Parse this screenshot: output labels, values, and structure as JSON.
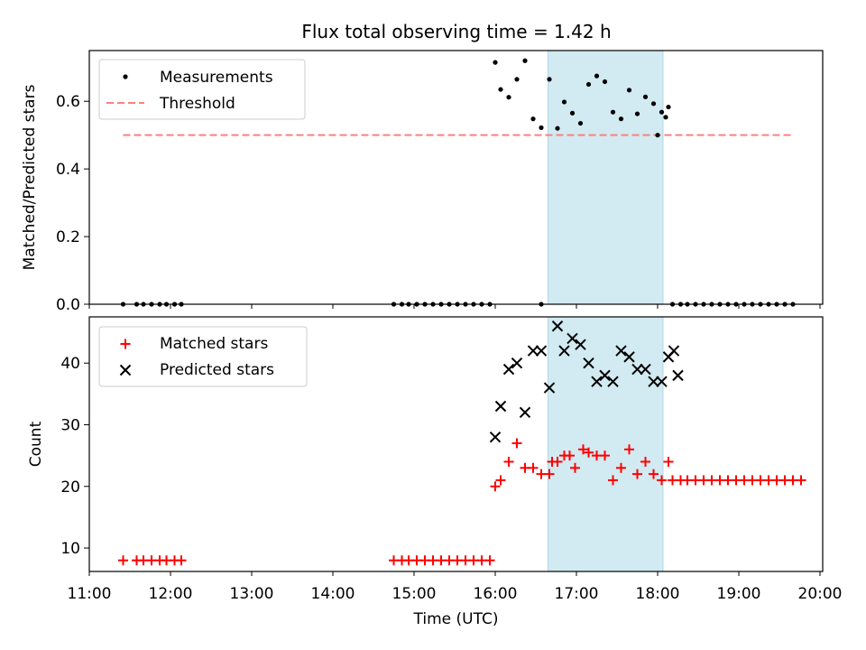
{
  "title": "Flux total observing time = 1.42 h",
  "colors": {
    "measurement": "#000000",
    "threshold": "#ff7f7f",
    "matched": "#ff0000",
    "predicted": "#000000",
    "highlight": "#add8e6"
  },
  "chart_data": [
    {
      "type": "scatter",
      "ylabel": "Matched/Predicted stars",
      "ylim": [
        0.0,
        0.75
      ],
      "yticks": [
        0.0,
        0.2,
        0.4,
        0.6
      ],
      "ytick_labels": [
        "0.0",
        "0.2",
        "0.4",
        "0.6"
      ],
      "xlim": [
        "11:00",
        "20:02"
      ],
      "highlight_span": [
        "16:39",
        "18:04"
      ],
      "legend": {
        "location": "upper-left",
        "entries": [
          "Measurements",
          "Threshold"
        ]
      },
      "series": [
        {
          "name": "Measurements",
          "marker": "dot",
          "points": [
            [
              "11:25",
              0.0
            ],
            [
              "11:35",
              0.0
            ],
            [
              "11:40",
              0.0
            ],
            [
              "11:46",
              0.0
            ],
            [
              "11:52",
              0.0
            ],
            [
              "11:57",
              0.0
            ],
            [
              "12:03",
              0.0
            ],
            [
              "12:08",
              0.0
            ],
            [
              "14:45",
              0.0
            ],
            [
              "14:51",
              0.0
            ],
            [
              "14:56",
              0.0
            ],
            [
              "15:02",
              0.0
            ],
            [
              "15:08",
              0.0
            ],
            [
              "15:14",
              0.0
            ],
            [
              "15:20",
              0.0
            ],
            [
              "15:26",
              0.0
            ],
            [
              "15:32",
              0.0
            ],
            [
              "15:38",
              0.0
            ],
            [
              "15:44",
              0.0
            ],
            [
              "15:50",
              0.0
            ],
            [
              "15:56",
              0.0
            ],
            [
              "16:00",
              0.715
            ],
            [
              "16:04",
              0.635
            ],
            [
              "16:10",
              0.612
            ],
            [
              "16:16",
              0.665
            ],
            [
              "16:22",
              0.72
            ],
            [
              "16:28",
              0.548
            ],
            [
              "16:34",
              0.522
            ],
            [
              "16:34",
              0.0
            ],
            [
              "16:40",
              0.665
            ],
            [
              "16:46",
              0.52
            ],
            [
              "16:51",
              0.598
            ],
            [
              "16:57",
              0.565
            ],
            [
              "17:03",
              0.535
            ],
            [
              "17:09",
              0.65
            ],
            [
              "17:15",
              0.675
            ],
            [
              "17:21",
              0.658
            ],
            [
              "17:27",
              0.568
            ],
            [
              "17:33",
              0.548
            ],
            [
              "17:39",
              0.633
            ],
            [
              "17:45",
              0.563
            ],
            [
              "17:51",
              0.613
            ],
            [
              "17:57",
              0.593
            ],
            [
              "18:03",
              0.568
            ],
            [
              "18:08",
              0.583
            ],
            [
              "18:00",
              0.5
            ],
            [
              "18:06",
              0.553
            ],
            [
              "18:11",
              0.0
            ],
            [
              "18:17",
              0.0
            ],
            [
              "18:22",
              0.0
            ],
            [
              "18:28",
              0.0
            ],
            [
              "18:34",
              0.0
            ],
            [
              "18:40",
              0.0
            ],
            [
              "18:46",
              0.0
            ],
            [
              "18:52",
              0.0
            ],
            [
              "18:58",
              0.0
            ],
            [
              "19:04",
              0.0
            ],
            [
              "19:10",
              0.0
            ],
            [
              "19:16",
              0.0
            ],
            [
              "19:22",
              0.0
            ],
            [
              "19:28",
              0.0
            ],
            [
              "19:34",
              0.0
            ],
            [
              "19:40",
              0.0
            ]
          ]
        },
        {
          "name": "Threshold",
          "marker": "dashed-line",
          "points": [
            [
              "11:25",
              0.5
            ],
            [
              "19:40",
              0.5
            ]
          ]
        }
      ]
    },
    {
      "type": "scatter",
      "xlabel": "Time (UTC)",
      "ylabel": "Count",
      "ylim": [
        6.2,
        47.5
      ],
      "yticks": [
        10,
        20,
        30,
        40
      ],
      "ytick_labels": [
        "10",
        "20",
        "30",
        "40"
      ],
      "xlim": [
        "11:00",
        "20:02"
      ],
      "xticks": [
        "11:00",
        "12:00",
        "13:00",
        "14:00",
        "15:00",
        "16:00",
        "17:00",
        "18:00",
        "19:00",
        "20:00"
      ],
      "xtick_labels": [
        "11:00",
        "12:00",
        "13:00",
        "14:00",
        "15:00",
        "16:00",
        "17:00",
        "18:00",
        "19:00",
        "20:00"
      ],
      "highlight_span": [
        "16:39",
        "18:04"
      ],
      "legend": {
        "location": "upper-left",
        "entries": [
          "Matched stars",
          "Predicted stars"
        ]
      },
      "series": [
        {
          "name": "Matched stars",
          "marker": "plus",
          "points": [
            [
              "11:25",
              8
            ],
            [
              "11:35",
              8
            ],
            [
              "11:40",
              8
            ],
            [
              "11:46",
              8
            ],
            [
              "11:52",
              8
            ],
            [
              "11:57",
              8
            ],
            [
              "12:03",
              8
            ],
            [
              "12:08",
              8
            ],
            [
              "14:45",
              8
            ],
            [
              "14:51",
              8
            ],
            [
              "14:56",
              8
            ],
            [
              "15:02",
              8
            ],
            [
              "15:08",
              8
            ],
            [
              "15:14",
              8
            ],
            [
              "15:20",
              8
            ],
            [
              "15:26",
              8
            ],
            [
              "15:32",
              8
            ],
            [
              "15:38",
              8
            ],
            [
              "15:44",
              8
            ],
            [
              "15:50",
              8
            ],
            [
              "15:56",
              8
            ],
            [
              "16:00",
              20
            ],
            [
              "16:04",
              21
            ],
            [
              "16:10",
              24
            ],
            [
              "16:16",
              27
            ],
            [
              "16:22",
              23
            ],
            [
              "16:28",
              23
            ],
            [
              "16:34",
              22
            ],
            [
              "16:40",
              22
            ],
            [
              "16:42",
              24
            ],
            [
              "16:46",
              24
            ],
            [
              "16:51",
              25
            ],
            [
              "16:55",
              25
            ],
            [
              "16:59",
              23
            ],
            [
              "17:05",
              26
            ],
            [
              "17:09",
              25.5
            ],
            [
              "17:15",
              25
            ],
            [
              "17:21",
              25
            ],
            [
              "17:27",
              21
            ],
            [
              "17:33",
              23
            ],
            [
              "17:39",
              26
            ],
            [
              "17:45",
              22
            ],
            [
              "17:51",
              24
            ],
            [
              "17:57",
              22
            ],
            [
              "18:03",
              21
            ],
            [
              "18:08",
              24
            ],
            [
              "18:11",
              21
            ],
            [
              "18:17",
              21
            ],
            [
              "18:22",
              21
            ],
            [
              "18:28",
              21
            ],
            [
              "18:34",
              21
            ],
            [
              "18:40",
              21
            ],
            [
              "18:46",
              21
            ],
            [
              "18:52",
              21
            ],
            [
              "18:58",
              21
            ],
            [
              "19:04",
              21
            ],
            [
              "19:10",
              21
            ],
            [
              "19:16",
              21
            ],
            [
              "19:22",
              21
            ],
            [
              "19:28",
              21
            ],
            [
              "19:34",
              21
            ],
            [
              "19:40",
              21
            ],
            [
              "19:46",
              21
            ]
          ]
        },
        {
          "name": "Predicted stars",
          "marker": "x",
          "points": [
            [
              "16:00",
              28
            ],
            [
              "16:04",
              33
            ],
            [
              "16:10",
              39
            ],
            [
              "16:16",
              40
            ],
            [
              "16:22",
              32
            ],
            [
              "16:28",
              42
            ],
            [
              "16:34",
              42
            ],
            [
              "16:40",
              36
            ],
            [
              "16:46",
              46
            ],
            [
              "16:51",
              42
            ],
            [
              "16:57",
              44
            ],
            [
              "17:03",
              43
            ],
            [
              "17:09",
              40
            ],
            [
              "17:15",
              37
            ],
            [
              "17:21",
              38
            ],
            [
              "17:27",
              37
            ],
            [
              "17:33",
              42
            ],
            [
              "17:39",
              41
            ],
            [
              "17:45",
              39
            ],
            [
              "17:51",
              39
            ],
            [
              "17:57",
              37
            ],
            [
              "18:03",
              37
            ],
            [
              "18:08",
              41
            ],
            [
              "18:12",
              42
            ],
            [
              "18:15",
              38
            ]
          ]
        }
      ]
    }
  ]
}
